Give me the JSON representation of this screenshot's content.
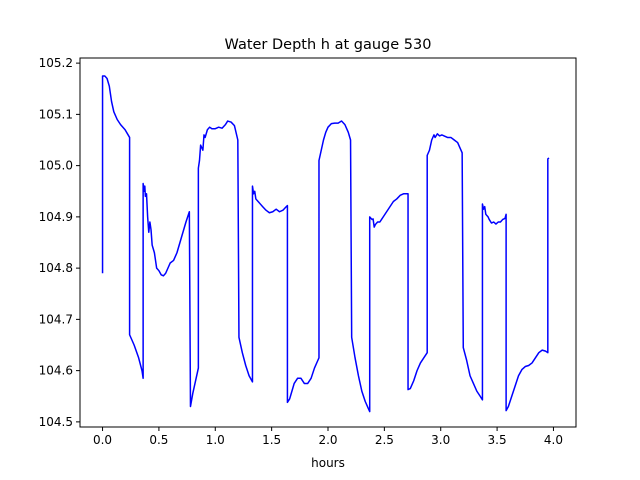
{
  "chart_data": {
    "type": "line",
    "title": "Water Depth h at gauge 530",
    "xlabel": "hours",
    "ylabel": "",
    "xlim": [
      -0.2,
      4.2
    ],
    "ylim": [
      104.49,
      105.21
    ],
    "x_ticks": [
      0.0,
      0.5,
      1.0,
      1.5,
      2.0,
      2.5,
      3.0,
      3.5,
      4.0
    ],
    "x_tick_labels": [
      "0.0",
      "0.5",
      "1.0",
      "1.5",
      "2.0",
      "2.5",
      "3.0",
      "3.5",
      "4.0"
    ],
    "y_ticks": [
      104.5,
      104.6,
      104.7,
      104.8,
      104.9,
      105.0,
      105.1,
      105.2
    ],
    "y_tick_labels": [
      "104.5",
      "104.6",
      "104.7",
      "104.8",
      "104.9",
      "105.0",
      "105.1",
      "105.2"
    ],
    "grid": false,
    "series": [
      {
        "name": "",
        "color": "#0000ff",
        "points": [
          [
            0.0,
            104.79
          ],
          [
            0.0,
            105.175
          ],
          [
            0.02,
            105.175
          ],
          [
            0.04,
            105.17
          ],
          [
            0.06,
            105.155
          ],
          [
            0.08,
            105.125
          ],
          [
            0.1,
            105.105
          ],
          [
            0.13,
            105.09
          ],
          [
            0.16,
            105.08
          ],
          [
            0.2,
            105.07
          ],
          [
            0.24,
            105.055
          ],
          [
            0.24,
            104.67
          ],
          [
            0.28,
            104.65
          ],
          [
            0.32,
            104.625
          ],
          [
            0.35,
            104.6
          ],
          [
            0.36,
            104.585
          ],
          [
            0.36,
            104.965
          ],
          [
            0.37,
            104.95
          ],
          [
            0.375,
            104.96
          ],
          [
            0.38,
            104.94
          ],
          [
            0.39,
            104.945
          ],
          [
            0.4,
            104.9
          ],
          [
            0.41,
            104.87
          ],
          [
            0.42,
            104.89
          ],
          [
            0.43,
            104.875
          ],
          [
            0.44,
            104.845
          ],
          [
            0.46,
            104.83
          ],
          [
            0.47,
            104.815
          ],
          [
            0.48,
            104.8
          ],
          [
            0.5,
            104.795
          ],
          [
            0.52,
            104.787
          ],
          [
            0.54,
            104.785
          ],
          [
            0.56,
            104.79
          ],
          [
            0.58,
            104.8
          ],
          [
            0.6,
            104.81
          ],
          [
            0.63,
            104.815
          ],
          [
            0.66,
            104.83
          ],
          [
            0.7,
            104.86
          ],
          [
            0.74,
            104.89
          ],
          [
            0.77,
            104.91
          ],
          [
            0.78,
            104.53
          ],
          [
            0.8,
            104.555
          ],
          [
            0.83,
            104.585
          ],
          [
            0.85,
            104.605
          ],
          [
            0.85,
            104.995
          ],
          [
            0.86,
            105.01
          ],
          [
            0.87,
            105.04
          ],
          [
            0.88,
            105.035
          ],
          [
            0.89,
            105.03
          ],
          [
            0.9,
            105.06
          ],
          [
            0.91,
            105.055
          ],
          [
            0.93,
            105.07
          ],
          [
            0.95,
            105.075
          ],
          [
            0.97,
            105.072
          ],
          [
            1.0,
            105.072
          ],
          [
            1.03,
            105.075
          ],
          [
            1.06,
            105.073
          ],
          [
            1.09,
            105.08
          ],
          [
            1.11,
            105.087
          ],
          [
            1.14,
            105.085
          ],
          [
            1.17,
            105.078
          ],
          [
            1.2,
            105.05
          ],
          [
            1.21,
            104.665
          ],
          [
            1.24,
            104.635
          ],
          [
            1.27,
            104.61
          ],
          [
            1.3,
            104.59
          ],
          [
            1.33,
            104.578
          ],
          [
            1.33,
            104.96
          ],
          [
            1.34,
            104.945
          ],
          [
            1.35,
            104.95
          ],
          [
            1.36,
            104.935
          ],
          [
            1.38,
            104.93
          ],
          [
            1.4,
            104.925
          ],
          [
            1.42,
            104.92
          ],
          [
            1.45,
            104.913
          ],
          [
            1.48,
            104.908
          ],
          [
            1.51,
            104.91
          ],
          [
            1.54,
            104.915
          ],
          [
            1.57,
            104.91
          ],
          [
            1.6,
            104.913
          ],
          [
            1.63,
            104.92
          ],
          [
            1.64,
            104.922
          ],
          [
            1.64,
            104.538
          ],
          [
            1.66,
            104.545
          ],
          [
            1.68,
            104.56
          ],
          [
            1.7,
            104.575
          ],
          [
            1.73,
            104.585
          ],
          [
            1.76,
            104.585
          ],
          [
            1.79,
            104.575
          ],
          [
            1.82,
            104.575
          ],
          [
            1.85,
            104.585
          ],
          [
            1.88,
            104.605
          ],
          [
            1.91,
            104.62
          ],
          [
            1.92,
            104.625
          ],
          [
            1.92,
            105.01
          ],
          [
            1.94,
            105.03
          ],
          [
            1.96,
            105.05
          ],
          [
            1.98,
            105.065
          ],
          [
            2.0,
            105.075
          ],
          [
            2.03,
            105.082
          ],
          [
            2.06,
            105.083
          ],
          [
            2.09,
            105.083
          ],
          [
            2.12,
            105.087
          ],
          [
            2.15,
            105.08
          ],
          [
            2.18,
            105.065
          ],
          [
            2.2,
            105.05
          ],
          [
            2.21,
            104.665
          ],
          [
            2.24,
            104.625
          ],
          [
            2.27,
            104.59
          ],
          [
            2.3,
            104.56
          ],
          [
            2.33,
            104.54
          ],
          [
            2.36,
            104.525
          ],
          [
            2.37,
            104.52
          ],
          [
            2.37,
            104.9
          ],
          [
            2.39,
            104.895
          ],
          [
            2.4,
            104.896
          ],
          [
            2.41,
            104.88
          ],
          [
            2.42,
            104.885
          ],
          [
            2.44,
            104.89
          ],
          [
            2.46,
            104.89
          ],
          [
            2.49,
            104.9
          ],
          [
            2.52,
            104.91
          ],
          [
            2.55,
            104.92
          ],
          [
            2.58,
            104.93
          ],
          [
            2.61,
            104.935
          ],
          [
            2.64,
            104.942
          ],
          [
            2.67,
            104.945
          ],
          [
            2.7,
            104.945
          ],
          [
            2.71,
            104.945
          ],
          [
            2.71,
            104.563
          ],
          [
            2.73,
            104.565
          ],
          [
            2.76,
            104.58
          ],
          [
            2.79,
            104.6
          ],
          [
            2.82,
            104.615
          ],
          [
            2.85,
            104.625
          ],
          [
            2.88,
            104.635
          ],
          [
            2.88,
            105.02
          ],
          [
            2.9,
            105.03
          ],
          [
            2.92,
            105.05
          ],
          [
            2.94,
            105.06
          ],
          [
            2.95,
            105.055
          ],
          [
            2.97,
            105.062
          ],
          [
            2.99,
            105.058
          ],
          [
            3.01,
            105.06
          ],
          [
            3.03,
            105.058
          ],
          [
            3.06,
            105.055
          ],
          [
            3.09,
            105.055
          ],
          [
            3.12,
            105.05
          ],
          [
            3.15,
            105.045
          ],
          [
            3.17,
            105.035
          ],
          [
            3.19,
            105.025
          ],
          [
            3.2,
            104.645
          ],
          [
            3.23,
            104.62
          ],
          [
            3.26,
            104.59
          ],
          [
            3.29,
            104.575
          ],
          [
            3.32,
            104.56
          ],
          [
            3.35,
            104.55
          ],
          [
            3.37,
            104.543
          ],
          [
            3.37,
            104.925
          ],
          [
            3.38,
            104.915
          ],
          [
            3.39,
            104.92
          ],
          [
            3.4,
            104.905
          ],
          [
            3.42,
            104.9
          ],
          [
            3.43,
            104.895
          ],
          [
            3.45,
            104.888
          ],
          [
            3.47,
            104.89
          ],
          [
            3.49,
            104.886
          ],
          [
            3.51,
            104.89
          ],
          [
            3.53,
            104.89
          ],
          [
            3.55,
            104.895
          ],
          [
            3.57,
            104.897
          ],
          [
            3.58,
            104.905
          ],
          [
            3.58,
            104.522
          ],
          [
            3.6,
            104.53
          ],
          [
            3.63,
            104.55
          ],
          [
            3.66,
            104.57
          ],
          [
            3.69,
            104.59
          ],
          [
            3.72,
            104.602
          ],
          [
            3.75,
            104.608
          ],
          [
            3.78,
            104.61
          ],
          [
            3.81,
            104.615
          ],
          [
            3.84,
            104.625
          ],
          [
            3.87,
            104.635
          ],
          [
            3.9,
            104.64
          ],
          [
            3.93,
            104.638
          ],
          [
            3.95,
            104.635
          ],
          [
            3.95,
            105.013
          ],
          [
            3.96,
            105.015
          ]
        ]
      }
    ]
  }
}
